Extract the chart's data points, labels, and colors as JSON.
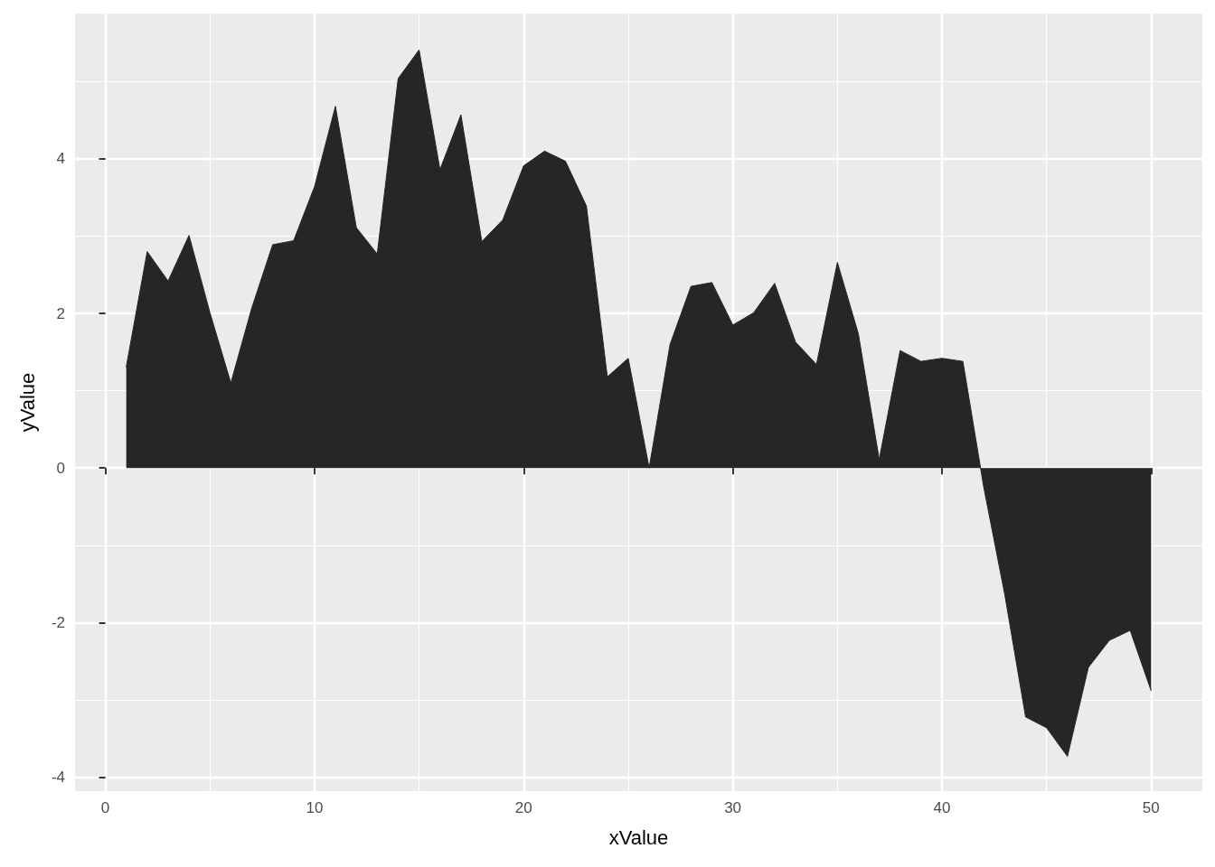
{
  "chart_data": {
    "type": "area",
    "xlabel": "xValue",
    "ylabel": "yValue",
    "x": [
      1,
      2,
      3,
      4,
      5,
      6,
      7,
      8,
      9,
      10,
      11,
      12,
      13,
      14,
      15,
      16,
      17,
      18,
      19,
      20,
      21,
      22,
      23,
      24,
      25,
      26,
      27,
      28,
      29,
      30,
      31,
      32,
      33,
      34,
      35,
      36,
      37,
      38,
      39,
      40,
      41,
      42,
      43,
      44,
      45,
      46,
      47,
      48,
      49,
      50
    ],
    "values": [
      1.31,
      2.8,
      2.42,
      3.01,
      2.01,
      1.1,
      2.07,
      2.89,
      2.94,
      3.64,
      4.68,
      3.11,
      2.77,
      5.04,
      5.41,
      3.86,
      4.57,
      2.93,
      3.21,
      3.91,
      4.1,
      3.97,
      3.39,
      1.18,
      1.42,
      0.0,
      1.6,
      2.35,
      2.4,
      1.85,
      2.01,
      2.39,
      1.63,
      1.34,
      2.66,
      1.74,
      0.11,
      1.52,
      1.38,
      1.42,
      1.38,
      -0.25,
      -1.63,
      -3.22,
      -3.36,
      -3.73,
      -2.58,
      -2.23,
      -2.1,
      -2.88
    ],
    "color": "#262626",
    "xlim": [
      -1.45,
      52.45
    ],
    "ylim": [
      -4.18,
      5.88
    ],
    "xticks": [
      0,
      10,
      20,
      30,
      40,
      50
    ],
    "yticks": [
      -4,
      -2,
      0,
      2,
      4
    ],
    "grid": true
  }
}
